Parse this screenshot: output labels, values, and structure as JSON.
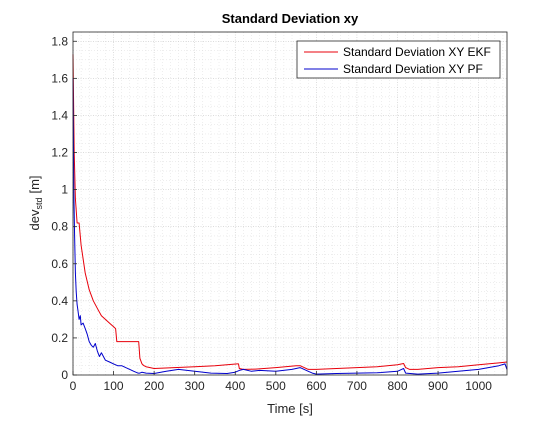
{
  "figure": {
    "background": "#ffffff"
  },
  "chart_data": {
    "type": "line",
    "title": "Standard Deviation xy",
    "xlabel": "Time [s]",
    "ylabel_main": "dev",
    "ylabel_sub": "std",
    "ylabel_unit": "[m]",
    "xlim": [
      0,
      1070
    ],
    "ylim": [
      0,
      1.85
    ],
    "xticks": [
      0,
      100,
      200,
      300,
      400,
      500,
      600,
      700,
      800,
      900,
      1000
    ],
    "xtick_labels": [
      "0",
      "100",
      "200",
      "300",
      "400",
      "500",
      "600",
      "700",
      "800",
      "900",
      "1000"
    ],
    "yticks": [
      0,
      0.2,
      0.4,
      0.6,
      0.8,
      1.0,
      1.2,
      1.4,
      1.6,
      1.8
    ],
    "ytick_labels": [
      "0",
      "0.2",
      "0.4",
      "0.6",
      "0.8",
      "1",
      "1.2",
      "1.4",
      "1.6",
      "1.8"
    ],
    "grid": "on (major and minor, dotted)",
    "legend_position": "top-right",
    "series": [
      {
        "name": "Standard Deviation XY EKF",
        "color": "#e8000b",
        "x": [
          0,
          3,
          6,
          10,
          15,
          20,
          30,
          40,
          50,
          60,
          70,
          80,
          90,
          100,
          105,
          108,
          120,
          140,
          162,
          165,
          170,
          175,
          180,
          190,
          200,
          250,
          300,
          350,
          405,
          408,
          410,
          420,
          450,
          500,
          550,
          560,
          580,
          600,
          650,
          700,
          750,
          800,
          815,
          820,
          830,
          850,
          900,
          950,
          1000,
          1050,
          1070
        ],
        "y": [
          1.73,
          1.2,
          0.95,
          0.82,
          0.82,
          0.7,
          0.55,
          0.46,
          0.4,
          0.36,
          0.32,
          0.3,
          0.28,
          0.26,
          0.25,
          0.18,
          0.18,
          0.18,
          0.18,
          0.09,
          0.06,
          0.05,
          0.045,
          0.04,
          0.035,
          0.04,
          0.045,
          0.05,
          0.06,
          0.06,
          0.035,
          0.03,
          0.032,
          0.04,
          0.05,
          0.05,
          0.03,
          0.03,
          0.035,
          0.04,
          0.045,
          0.055,
          0.062,
          0.04,
          0.03,
          0.03,
          0.04,
          0.045,
          0.055,
          0.065,
          0.07
        ]
      },
      {
        "name": "Standard Deviation XY PF",
        "color": "#0000cc",
        "x": [
          0,
          2,
          4,
          6,
          8,
          10,
          12,
          15,
          18,
          20,
          25,
          30,
          35,
          40,
          45,
          50,
          55,
          60,
          65,
          70,
          80,
          90,
          100,
          110,
          120,
          130,
          140,
          150,
          160,
          165,
          170,
          180,
          200,
          230,
          260,
          300,
          340,
          380,
          400,
          410,
          420,
          440,
          460,
          500,
          540,
          560,
          580,
          590,
          600,
          650,
          700,
          750,
          800,
          810,
          815,
          820,
          850,
          900,
          950,
          1000,
          1050,
          1065,
          1070
        ],
        "y": [
          1.6,
          1.0,
          0.75,
          0.55,
          0.45,
          0.38,
          0.35,
          0.3,
          0.32,
          0.27,
          0.28,
          0.25,
          0.22,
          0.18,
          0.16,
          0.15,
          0.17,
          0.13,
          0.1,
          0.12,
          0.08,
          0.07,
          0.06,
          0.05,
          0.05,
          0.04,
          0.03,
          0.02,
          0.01,
          0.01,
          0.015,
          0.01,
          0.008,
          0.02,
          0.03,
          0.02,
          0.01,
          0.008,
          0.015,
          0.025,
          0.03,
          0.02,
          0.025,
          0.02,
          0.03,
          0.04,
          0.02,
          0.01,
          0.005,
          0.008,
          0.01,
          0.012,
          0.02,
          0.03,
          0.035,
          0.01,
          0.005,
          0.01,
          0.02,
          0.03,
          0.05,
          0.06,
          0.03
        ]
      }
    ]
  }
}
